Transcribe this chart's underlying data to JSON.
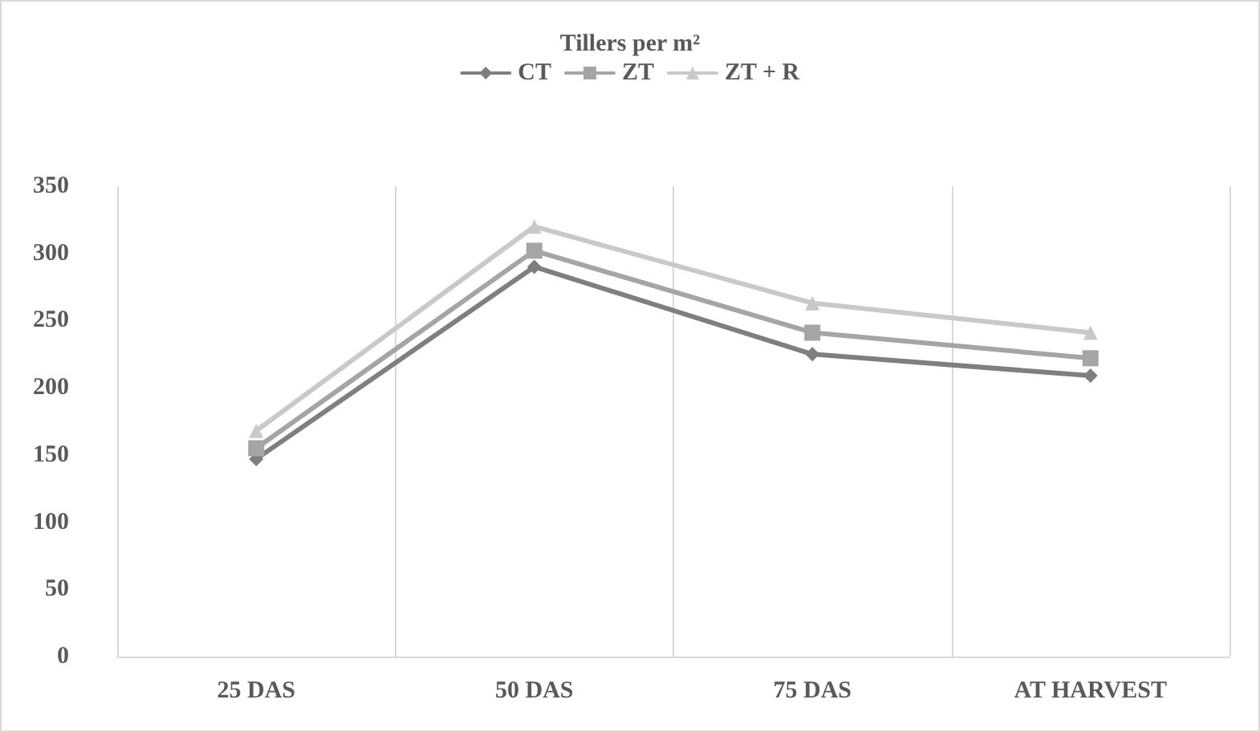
{
  "chart_data": {
    "type": "line",
    "title": "Tillers per m²",
    "categories": [
      "25 DAS",
      "50 DAS",
      "75 DAS",
      "AT HARVEST"
    ],
    "series": [
      {
        "name": "CT",
        "color": "#7f7f7f",
        "marker": "diamond",
        "values": [
          147,
          290,
          225,
          209
        ]
      },
      {
        "name": "ZT",
        "color": "#a5a5a5",
        "marker": "square",
        "values": [
          155,
          302,
          241,
          222
        ]
      },
      {
        "name": "ZT + R",
        "color": "#c9c9c9",
        "marker": "triangle",
        "values": [
          168,
          320,
          263,
          241
        ]
      }
    ],
    "ylim": [
      0,
      350
    ],
    "yticks": [
      0,
      50,
      100,
      150,
      200,
      250,
      300,
      350
    ],
    "grid": "x",
    "legend": "top"
  }
}
